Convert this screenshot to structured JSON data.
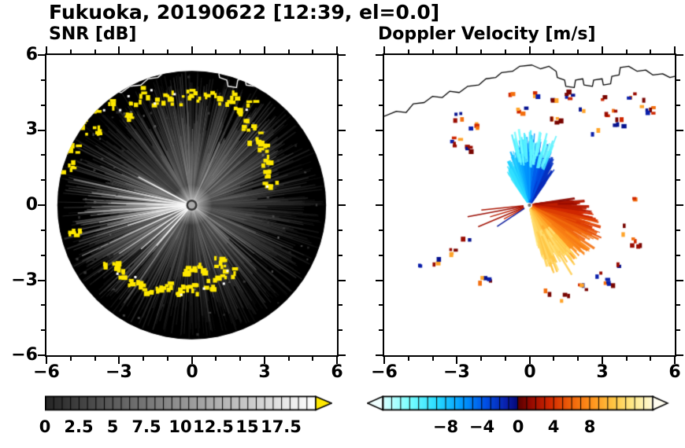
{
  "title": "Fukuoka, 20190622 [12:39, el=0.0]",
  "panels": {
    "snr": {
      "title": "SNR [dB]"
    },
    "doppler": {
      "title": "Doppler Velocity [m/s]"
    }
  },
  "axes": {
    "xticks": [
      "−6",
      "−3",
      "0",
      "3",
      "6"
    ],
    "yticks": [
      "6",
      "3",
      "0",
      "−3",
      "−6"
    ]
  },
  "colorbars": {
    "snr": {
      "ticks": [
        "0",
        "2.5",
        "5",
        "7.5",
        "10",
        "12.5",
        "15",
        "17.5"
      ]
    },
    "doppler": {
      "ticks": [
        "−8",
        "−4",
        "0",
        "4",
        "8"
      ]
    }
  },
  "chart_data": {
    "type": "heatmap",
    "subtype": "radar_ppi_pair",
    "site": "Fukuoka",
    "date": "20190622",
    "time": "12:39",
    "elevation_deg": 0.0,
    "x_range": [
      -6,
      6
    ],
    "y_range": [
      -6,
      6
    ],
    "xticks": [
      -6,
      -3,
      0,
      3,
      6
    ],
    "yticks": [
      -6,
      -3,
      0,
      3,
      6
    ],
    "coastline": [
      [
        -6.0,
        3.55
      ],
      [
        -5.5,
        3.75
      ],
      [
        -5.1,
        3.7
      ],
      [
        -4.8,
        4.05
      ],
      [
        -4.35,
        4.1
      ],
      [
        -4.0,
        4.35
      ],
      [
        -3.6,
        4.3
      ],
      [
        -3.3,
        4.55
      ],
      [
        -2.9,
        4.5
      ],
      [
        -2.55,
        4.75
      ],
      [
        -2.1,
        4.8
      ],
      [
        -1.8,
        5.05
      ],
      [
        -1.4,
        5.1
      ],
      [
        -1.15,
        5.3
      ],
      [
        -0.7,
        5.35
      ],
      [
        -0.4,
        5.55
      ],
      [
        0.1,
        5.6
      ],
      [
        0.45,
        5.45
      ],
      [
        0.8,
        5.55
      ],
      [
        1.1,
        5.35
      ],
      [
        1.15,
        5.1
      ],
      [
        1.45,
        5.0
      ],
      [
        1.5,
        4.75
      ],
      [
        1.85,
        4.7
      ],
      [
        1.9,
        5.0
      ],
      [
        2.2,
        5.05
      ],
      [
        2.25,
        4.8
      ],
      [
        2.6,
        4.75
      ],
      [
        2.65,
        5.0
      ],
      [
        3.0,
        5.05
      ],
      [
        3.05,
        4.8
      ],
      [
        3.35,
        4.85
      ],
      [
        3.4,
        5.15
      ],
      [
        3.7,
        5.2
      ],
      [
        3.75,
        5.5
      ],
      [
        4.1,
        5.55
      ],
      [
        4.45,
        5.35
      ],
      [
        4.8,
        5.4
      ],
      [
        5.1,
        5.2
      ],
      [
        5.5,
        5.25
      ],
      [
        5.8,
        5.1
      ],
      [
        6.0,
        5.15
      ]
    ],
    "panels": [
      {
        "name": "SNR",
        "units": "dB",
        "scan_radius": 5.55,
        "colorbar": {
          "min": 0,
          "max": 20,
          "tick_values": [
            0,
            2.5,
            5,
            7.5,
            10,
            12.5,
            15,
            17.5
          ],
          "scale": "grayscale",
          "colors": [
            "#000000",
            "#ffffff"
          ],
          "over_color": "#ffe900"
        },
        "ray_sectors": [
          {
            "center_deg": 170,
            "sigma": 14,
            "gain": 0.9
          },
          {
            "center_deg": 188,
            "sigma": 10,
            "gain": 0.8
          },
          {
            "center_deg": 222,
            "sigma": 16,
            "gain": 0.55
          },
          {
            "center_deg": 48,
            "sigma": 26,
            "gain": 0.45
          },
          {
            "center_deg": 105,
            "sigma": 22,
            "gain": 0.35
          },
          {
            "center_deg": 318,
            "sigma": 24,
            "gain": 0.35
          }
        ],
        "bright_rays_deg": [
          [
            168,
            0.9
          ],
          [
            173,
            0.75
          ],
          [
            178,
            0.6
          ],
          [
            184,
            0.85
          ],
          [
            190,
            0.7
          ],
          [
            197,
            0.5
          ],
          [
            205,
            0.9
          ],
          [
            214,
            0.65
          ],
          [
            221,
            0.5
          ],
          [
            229,
            0.4
          ],
          [
            152,
            0.45
          ]
        ],
        "strong_echoes": [
          [
            -4.6,
            3.35
          ],
          [
            -4.15,
            3.0
          ],
          [
            -3.85,
            3.85
          ],
          [
            -3.3,
            4.05
          ],
          [
            -2.8,
            3.6
          ],
          [
            -2.4,
            4.3
          ],
          [
            -1.9,
            4.6
          ],
          [
            -1.5,
            4.1
          ],
          [
            -1.05,
            4.45
          ],
          [
            -0.6,
            4.2
          ],
          [
            -0.15,
            4.5
          ],
          [
            0.3,
            4.35
          ],
          [
            0.8,
            4.5
          ],
          [
            1.3,
            4.2
          ],
          [
            1.7,
            4.4
          ],
          [
            2.0,
            3.75
          ],
          [
            2.3,
            3.25
          ],
          [
            2.55,
            2.75
          ],
          [
            2.8,
            2.3
          ],
          [
            3.05,
            1.85
          ],
          [
            3.1,
            1.3
          ],
          [
            3.2,
            0.8
          ],
          [
            2.45,
            4.05
          ],
          [
            -5.05,
            2.3
          ],
          [
            -5.2,
            1.6
          ],
          [
            -3.4,
            -2.3
          ],
          [
            -2.9,
            -2.7
          ],
          [
            -2.35,
            -3.05
          ],
          [
            -1.75,
            -3.3
          ],
          [
            -1.2,
            -3.15
          ],
          [
            -0.6,
            -3.35
          ],
          [
            0.0,
            -3.3
          ],
          [
            0.55,
            -3.1
          ],
          [
            1.05,
            -2.85
          ],
          [
            1.55,
            -2.6
          ],
          [
            0.3,
            -2.5
          ],
          [
            -0.35,
            -2.6
          ],
          [
            -4.85,
            -1.0
          ],
          [
            1.15,
            -2.2
          ]
        ]
      },
      {
        "name": "Doppler Velocity",
        "units": "m/s",
        "colorbar": {
          "min": -15,
          "max": 15,
          "tick_values": [
            -8,
            -4,
            0,
            4,
            8
          ],
          "stops": [
            [
              0.0,
              "#d7ffff"
            ],
            [
              0.1,
              "#78ffff"
            ],
            [
              0.2,
              "#28dcff"
            ],
            [
              0.3,
              "#0096ff"
            ],
            [
              0.38,
              "#0050e6"
            ],
            [
              0.46,
              "#0a1eaa"
            ],
            [
              0.497,
              "#050a78"
            ],
            [
              0.503,
              "#5a0000"
            ],
            [
              0.55,
              "#960a00"
            ],
            [
              0.62,
              "#d22800"
            ],
            [
              0.7,
              "#f0640a"
            ],
            [
              0.78,
              "#ff961e"
            ],
            [
              0.86,
              "#ffc846"
            ],
            [
              0.93,
              "#ffeb8c"
            ],
            [
              1.0,
              "#fffad7"
            ]
          ],
          "under_color": "#f0ffff",
          "over_color": "#fffdf0"
        },
        "fans": [
          {
            "name": "toward-radar",
            "angle_deg": [
              55,
              125
            ],
            "max_radius": 3.0,
            "velocity_range": [
              -10,
              -1.5
            ]
          },
          {
            "name": "away-from-radar",
            "angle_deg": [
              -78,
              8
            ],
            "max_radius": 3.3,
            "velocity_range": [
              1.5,
              12.5
            ]
          }
        ],
        "left_rays": [
          [
            186,
            2.0,
            2.2
          ],
          [
            191,
            2.6,
            1.6
          ],
          [
            197,
            1.7,
            2.8
          ],
          [
            203,
            2.3,
            1.9
          ],
          [
            209,
            1.2,
            3.5
          ],
          [
            213,
            1.6,
            -0.9
          ]
        ],
        "speckles": [
          [
            -2.95,
            3.55
          ],
          [
            -2.35,
            3.25
          ],
          [
            -2.6,
            2.35
          ],
          [
            -3.1,
            2.6
          ],
          [
            0.25,
            4.55
          ],
          [
            0.95,
            4.25
          ],
          [
            1.6,
            4.45
          ],
          [
            2.2,
            3.95
          ],
          [
            2.95,
            4.35
          ],
          [
            3.3,
            3.75
          ],
          [
            4.15,
            4.5
          ],
          [
            4.5,
            4.15
          ],
          [
            -0.35,
            3.85
          ],
          [
            1.05,
            3.55
          ],
          [
            2.6,
            3.1
          ],
          [
            3.6,
            3.35
          ],
          [
            4.4,
            0.3
          ],
          [
            3.9,
            -0.9
          ],
          [
            4.35,
            -1.45
          ],
          [
            3.4,
            -2.2
          ],
          [
            2.85,
            -2.6
          ],
          [
            3.2,
            -3.0
          ],
          [
            2.1,
            -3.3
          ],
          [
            1.35,
            -3.6
          ],
          [
            0.6,
            -3.35
          ],
          [
            -2.75,
            -1.25
          ],
          [
            -3.2,
            -1.7
          ],
          [
            -3.9,
            -2.1
          ],
          [
            -4.7,
            -2.3
          ],
          [
            -1.9,
            -2.9
          ],
          [
            -0.9,
            4.6
          ],
          [
            5.0,
            3.9
          ]
        ]
      }
    ]
  }
}
